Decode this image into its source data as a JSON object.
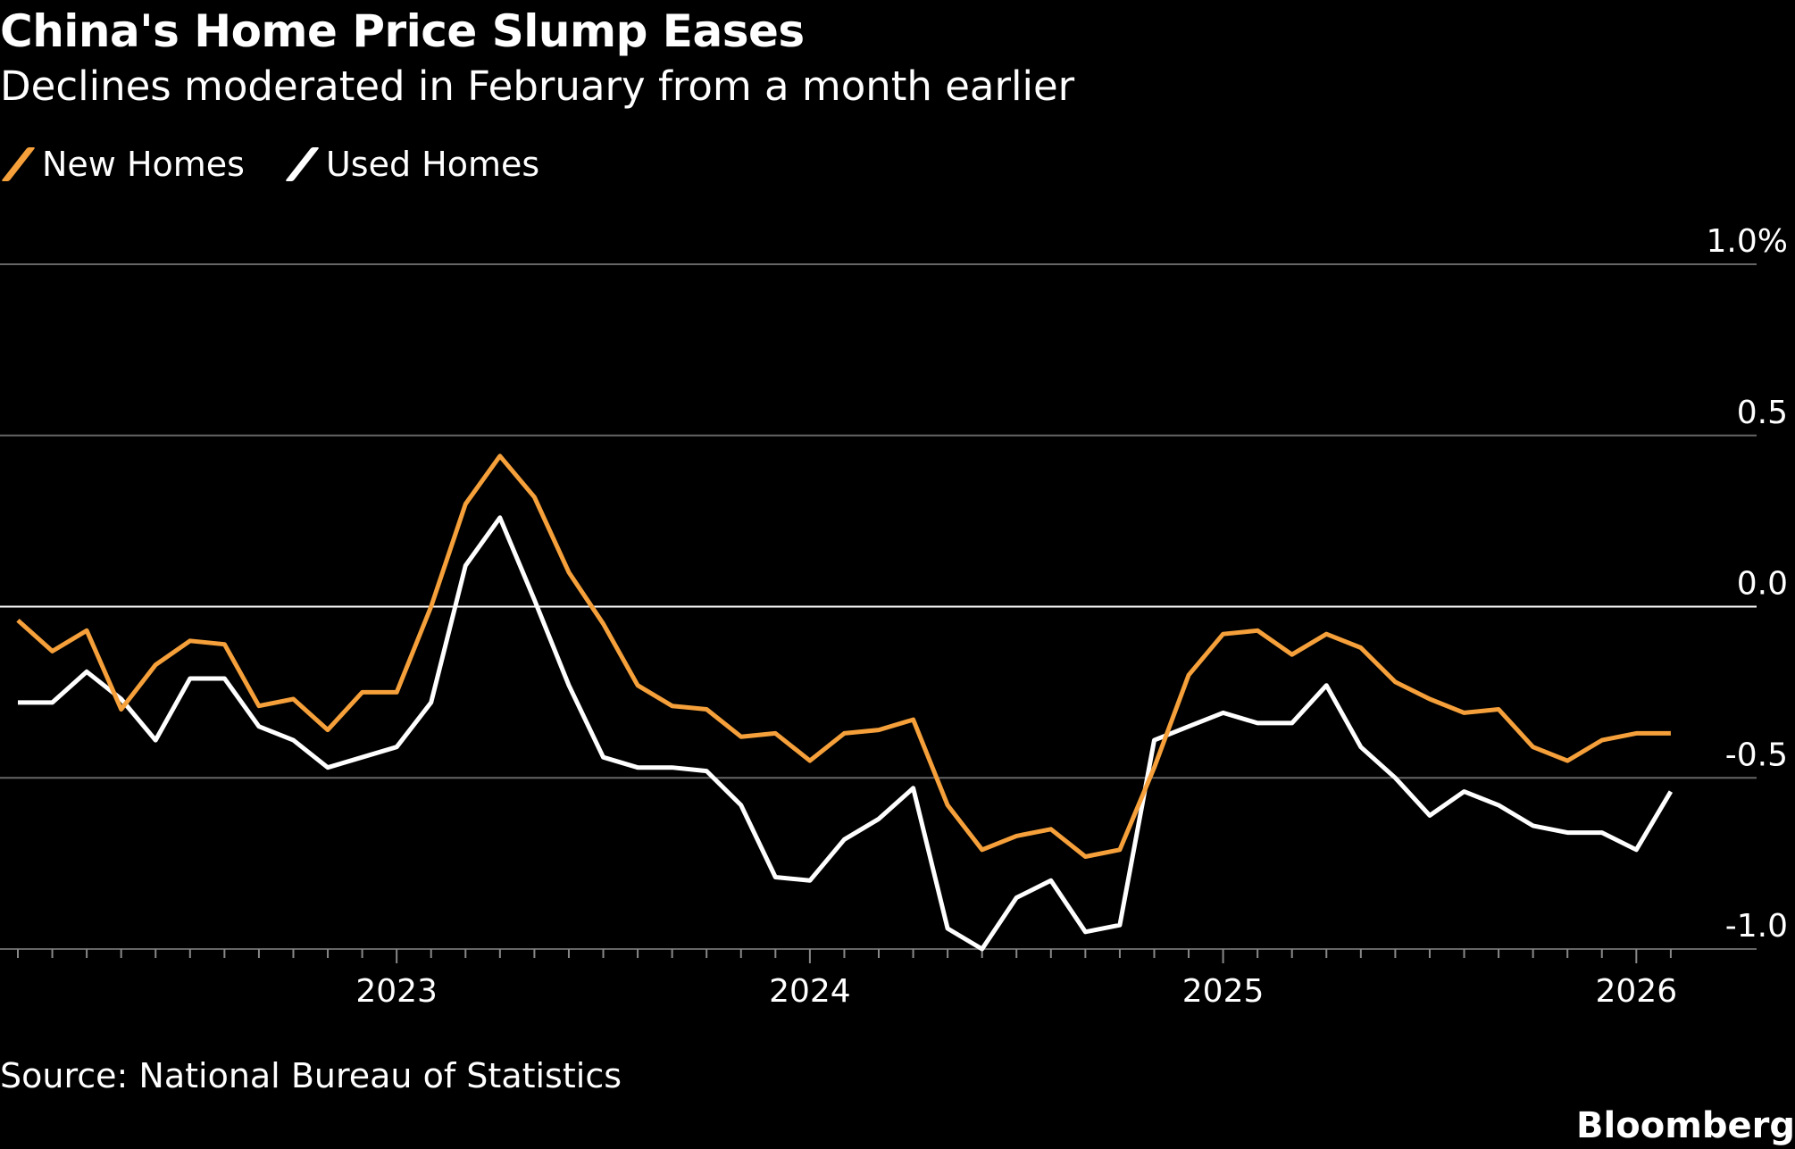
{
  "title": "China's Home Price Slump Eases",
  "subtitle": "Declines moderated in February from a month earlier",
  "source": "Source: National Bureau of Statistics",
  "brand": "Bloomberg",
  "chart_data": {
    "type": "line",
    "title": "China's Home Price Slump Eases",
    "subtitle": "Declines moderated in February from a month earlier",
    "x_start": "2022-02",
    "x_end": "2026-02",
    "x_frequency": "monthly",
    "xticks": [
      "2023",
      "2024",
      "2025",
      "2026"
    ],
    "yticks": [
      "1.0%",
      "0.5",
      "0.0",
      "-0.5",
      "-1.0"
    ],
    "ytick_values": [
      1.0,
      0.5,
      0.0,
      -0.5,
      -1.0
    ],
    "ylim": [
      -1.0,
      1.0
    ],
    "grid": true,
    "legend_position": "top-left",
    "series": [
      {
        "name": "New Homes",
        "color": "#f5a03a",
        "values": [
          -0.04,
          -0.13,
          -0.07,
          -0.3,
          -0.17,
          -0.1,
          -0.11,
          -0.29,
          -0.27,
          -0.36,
          -0.25,
          -0.25,
          0.0,
          0.3,
          0.44,
          0.32,
          0.1,
          -0.05,
          -0.23,
          -0.29,
          -0.3,
          -0.38,
          -0.37,
          -0.45,
          -0.37,
          -0.36,
          -0.33,
          -0.58,
          -0.71,
          -0.67,
          -0.65,
          -0.73,
          -0.71,
          -0.47,
          -0.2,
          -0.08,
          -0.07,
          -0.14,
          -0.08,
          -0.12,
          -0.22,
          -0.27,
          -0.31,
          -0.3,
          -0.41,
          -0.45,
          -0.39,
          -0.37,
          -0.37
        ]
      },
      {
        "name": "Used Homes",
        "color": "#ffffff",
        "values": [
          -0.28,
          -0.28,
          -0.19,
          -0.27,
          -0.39,
          -0.21,
          -0.21,
          -0.35,
          -0.39,
          -0.47,
          -0.44,
          -0.41,
          -0.28,
          0.12,
          0.26,
          0.02,
          -0.23,
          -0.44,
          -0.47,
          -0.47,
          -0.48,
          -0.58,
          -0.79,
          -0.8,
          -0.68,
          -0.62,
          -0.53,
          -0.94,
          -1.0,
          -0.85,
          -0.8,
          -0.95,
          -0.93,
          -0.39,
          -0.35,
          -0.31,
          -0.34,
          -0.34,
          -0.23,
          -0.41,
          -0.5,
          -0.61,
          -0.54,
          -0.58,
          -0.64,
          -0.66,
          -0.66,
          -0.71,
          -0.54
        ]
      }
    ]
  }
}
